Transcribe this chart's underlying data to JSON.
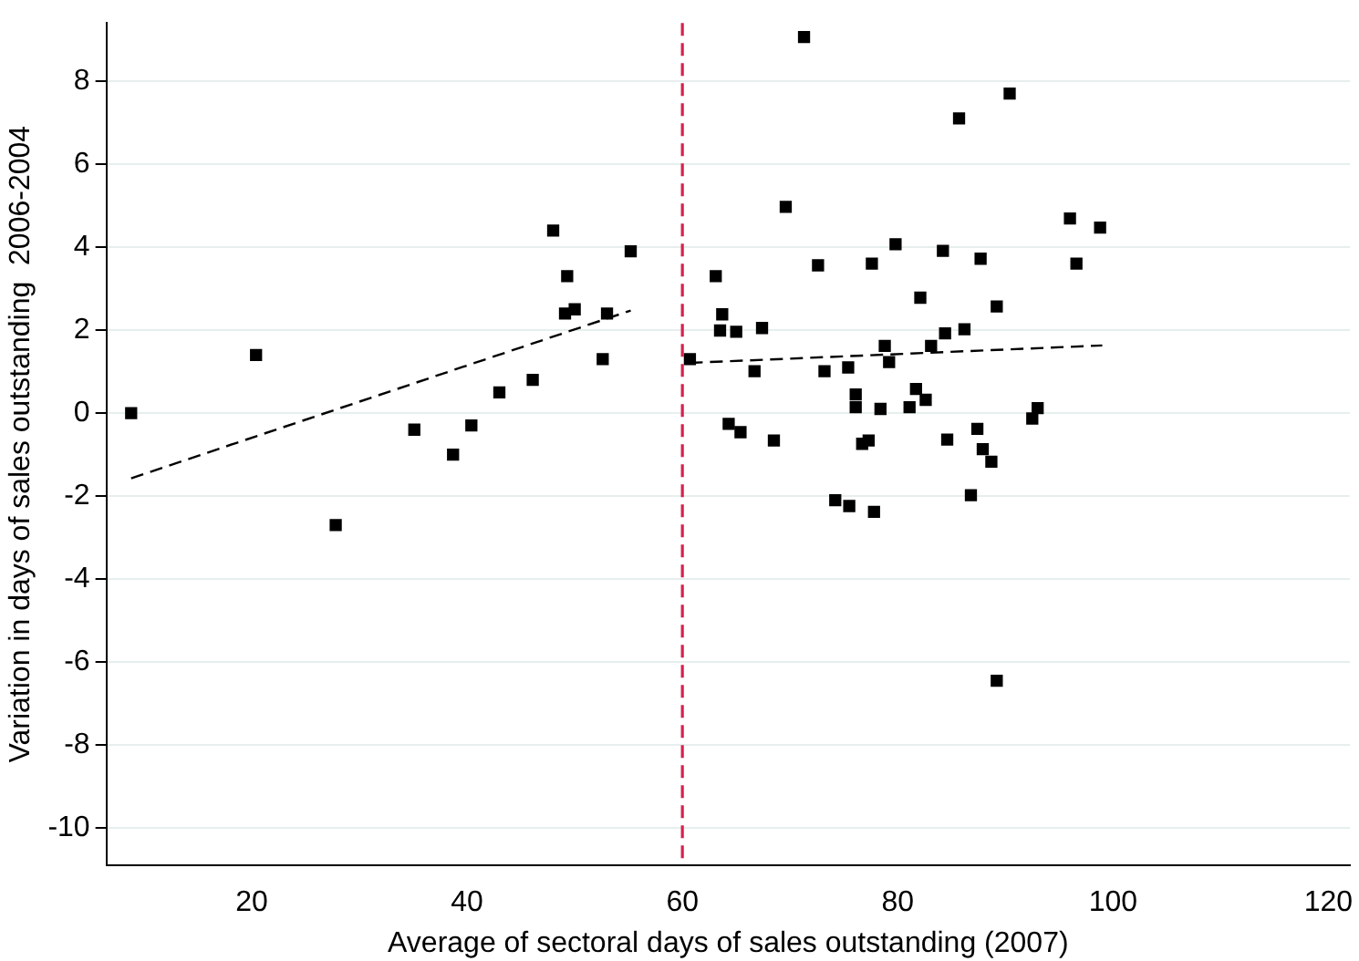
{
  "chart_data": {
    "type": "scatter",
    "xlabel": "Average of sectoral days of sales outstanding (2007)",
    "ylabel": "Variation in days of sales outstanding  2006-2004",
    "xlim": [
      6.5,
      122
    ],
    "ylim": [
      -10.9,
      9.4
    ],
    "xticks": [
      20,
      40,
      60,
      80,
      100,
      120
    ],
    "yticks": [
      -10,
      -8,
      -6,
      -4,
      -2,
      0,
      2,
      4,
      6,
      8
    ],
    "grid": "y",
    "marker": "square",
    "ref_lines": [
      {
        "axis": "x",
        "value": 60,
        "color": "#d6204e",
        "line_style": "dashed"
      }
    ],
    "series": [
      {
        "color": "#000000",
        "x": [
          8.8,
          20.4,
          27.8,
          35.1,
          38.7,
          40.4,
          43.0,
          46.1,
          48.0,
          49.3,
          49.1,
          50.0,
          52.6,
          53.0,
          55.2,
          71.3,
          90.4,
          85.7,
          69.6,
          96.0,
          98.8,
          79.8,
          84.2,
          72.6,
          77.6,
          87.7,
          96.6,
          63.1,
          82.1,
          89.2,
          63.7,
          63.5,
          65.0,
          67.4,
          84.4,
          86.2,
          60.7,
          78.8,
          83.1,
          79.2,
          66.7,
          73.2,
          75.4,
          81.7,
          82.6,
          76.1,
          76.1,
          78.4,
          81.1,
          93.0,
          92.5,
          64.3,
          65.4,
          68.5,
          76.7,
          77.3,
          84.6,
          87.4,
          87.9,
          88.7,
          86.8,
          74.2,
          75.5,
          77.8,
          89.2
        ],
        "values": [
          0,
          1.4,
          -2.7,
          -0.4,
          -1.0,
          -0.3,
          0.5,
          0.8,
          4.4,
          3.3,
          2.4,
          2.5,
          1.3,
          2.4,
          3.9,
          9.06,
          7.7,
          7.1,
          4.97,
          4.69,
          4.47,
          4.07,
          3.91,
          3.56,
          3.6,
          3.72,
          3.6,
          3.3,
          2.78,
          2.57,
          2.38,
          1.99,
          1.96,
          2.05,
          1.92,
          2.02,
          1.3,
          1.62,
          1.62,
          1.23,
          1.01,
          1.01,
          1.1,
          0.58,
          0.32,
          0.45,
          0.14,
          0.1,
          0.14,
          0.12,
          -0.13,
          -0.26,
          -0.46,
          -0.66,
          -0.74,
          -0.66,
          -0.64,
          -0.38,
          -0.87,
          -1.17,
          -1.98,
          -2.1,
          -2.24,
          -2.38,
          -6.45
        ]
      },
      {
        "type": "line",
        "color": "#000000",
        "line_style": "dashed",
        "marker": "none",
        "x": [
          8.8,
          55.2
        ],
        "values": [
          -1.57,
          2.47
        ]
      },
      {
        "type": "line",
        "color": "#000000",
        "line_style": "dashed",
        "marker": "none",
        "x": [
          60.7,
          99.0
        ],
        "values": [
          1.21,
          1.63
        ]
      }
    ]
  }
}
